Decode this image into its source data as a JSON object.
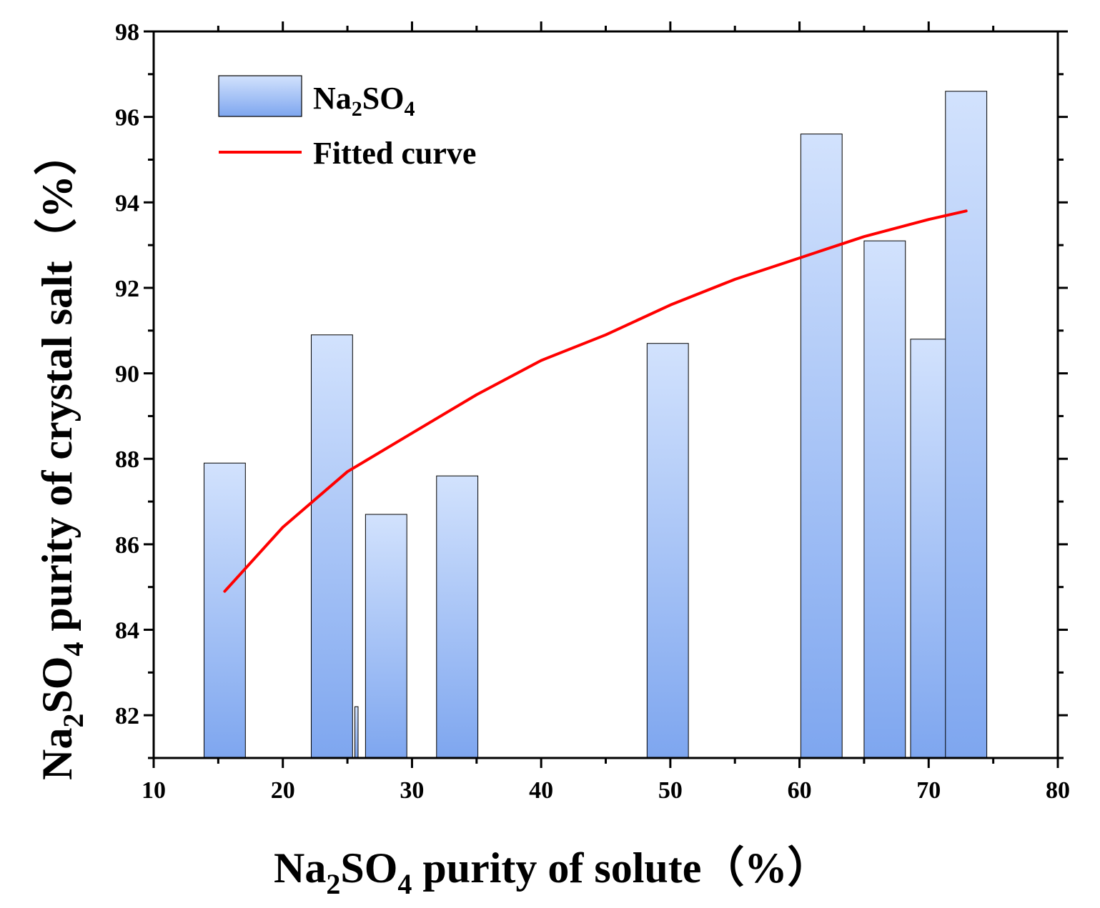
{
  "chart_data": {
    "type": "bar",
    "title": "",
    "xlabel": "Na2SO4 purity of solute（%）",
    "ylabel": "Na2SO4 purity of crystal salt（%）",
    "xlim": [
      10,
      80
    ],
    "ylim": [
      81,
      98
    ],
    "x_ticks": [
      10,
      20,
      30,
      40,
      50,
      60,
      70,
      80
    ],
    "y_ticks": [
      82,
      84,
      86,
      88,
      90,
      92,
      94,
      96,
      98
    ],
    "bar_color": "#8bb0f2",
    "bar_color_light": "#cfe0fc",
    "curve_color": "#ff0000",
    "series": [
      {
        "name": "Na2SO4",
        "kind": "bar",
        "x": [
          15.5,
          23.8,
          28.0,
          33.5,
          49.8,
          61.7,
          66.6,
          70.2,
          72.9
        ],
        "values": [
          87.9,
          90.9,
          86.7,
          87.6,
          90.7,
          95.6,
          93.1,
          90.8,
          96.6
        ],
        "width": 3.2
      },
      {
        "name": "Fitted curve",
        "kind": "line",
        "x": [
          15.5,
          20,
          25,
          30,
          35,
          40,
          45,
          50,
          55,
          60,
          65,
          70,
          72.9
        ],
        "values": [
          84.9,
          86.4,
          87.7,
          88.6,
          89.5,
          90.3,
          90.9,
          91.6,
          92.2,
          92.7,
          93.2,
          93.6,
          93.8
        ]
      }
    ],
    "extra_marks": [
      {
        "x": 25.7,
        "value": 82.2,
        "width": 0.25
      }
    ],
    "legend": {
      "position": "top-left",
      "entries": [
        "Na2SO4",
        "Fitted curve"
      ]
    }
  }
}
